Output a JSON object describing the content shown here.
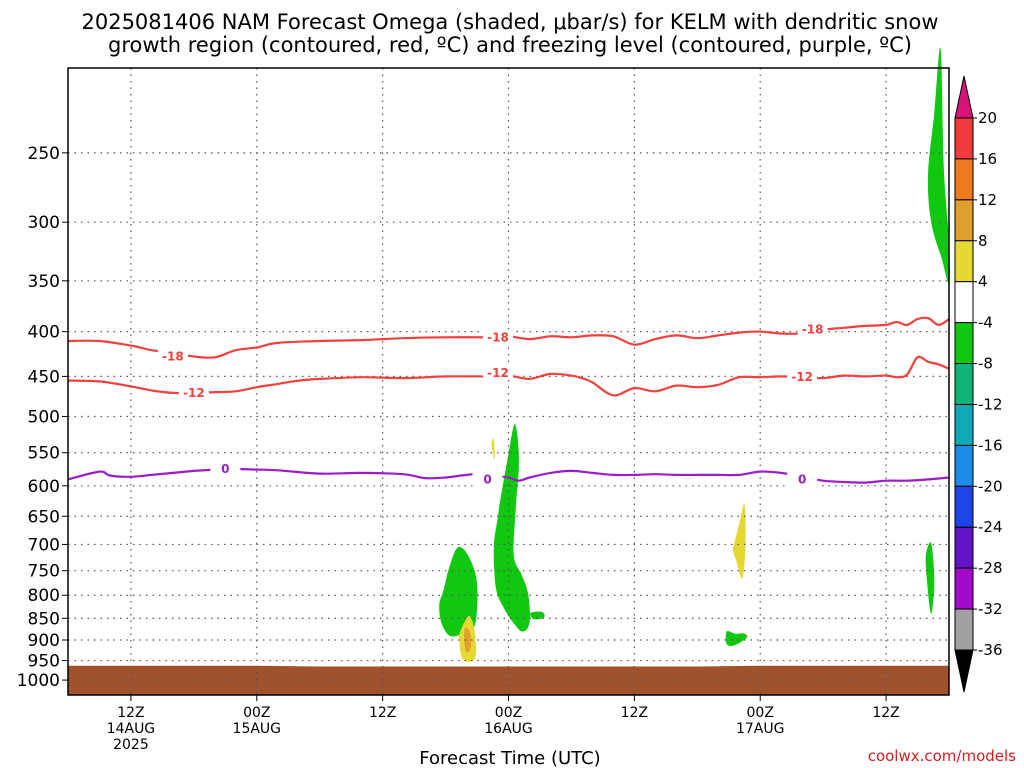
{
  "chart_data": {
    "type": "heatmap",
    "title_lines": [
      "2025081406 NAM Forecast Omega (shaded, μbar/s) for KELM with dendritic snow",
      "growth region (contoured, red, ºC) and freezing level (contoured, purple, ºC)"
    ],
    "xlabel": "Forecast Time (UTC)",
    "credit": "coolwx.com/models",
    "y_axis": {
      "scale": "log-pressure",
      "unit": "hPa",
      "range": [
        200,
        1040
      ],
      "ticks": [
        "250",
        "300",
        "350",
        "400",
        "450",
        "500",
        "550",
        "600",
        "650",
        "700",
        "750",
        "800",
        "850",
        "900",
        "950",
        "1000"
      ]
    },
    "x_axis": {
      "range": [
        0,
        84
      ],
      "ticks": [
        {
          "hour": 6,
          "line1": "12Z",
          "line2": "14AUG",
          "line3": "2025"
        },
        {
          "hour": 18,
          "line1": "00Z",
          "line2": "15AUG",
          "line3": ""
        },
        {
          "hour": 30,
          "line1": "12Z",
          "line2": "",
          "line3": ""
        },
        {
          "hour": 42,
          "line1": "00Z",
          "line2": "16AUG",
          "line3": ""
        },
        {
          "hour": 54,
          "line1": "12Z",
          "line2": "",
          "line3": ""
        },
        {
          "hour": 66,
          "line1": "00Z",
          "line2": "17AUG",
          "line3": ""
        },
        {
          "hour": 78,
          "line1": "12Z",
          "line2": "",
          "line3": ""
        }
      ]
    },
    "grid": true,
    "colorbar": {
      "labels": [
        "20",
        "16",
        "12",
        "8",
        "4",
        "-4",
        "-8",
        "-12",
        "-16",
        "-20",
        "-24",
        "-28",
        "-32",
        "-36"
      ],
      "colors": [
        "#d8127a",
        "#f03c3c",
        "#f07a1e",
        "#e0a02e",
        "#e6d832",
        "#ffffff",
        "#10c810",
        "#10b478",
        "#10aab4",
        "#1e8ce6",
        "#1e46e6",
        "#6414c8",
        "#a00ac8",
        "#a0a0a0",
        "#000000"
      ],
      "extend": "both"
    },
    "terrain": {
      "color": "#a0522d",
      "surface_hpa": [
        963,
        963,
        963,
        963,
        965,
        965,
        965,
        965,
        965,
        965,
        965,
        963,
        963,
        963,
        963
      ]
    },
    "dgz_color": "#f04040",
    "freezing_color": "#9a1ec8",
    "isotherms": [
      {
        "label": "-18",
        "color": "#f04040",
        "x": [
          0,
          3,
          6,
          8,
          10,
          12,
          14,
          16,
          18,
          20,
          24,
          28,
          32,
          36,
          40,
          42,
          44,
          46,
          48,
          50,
          52,
          54,
          56,
          58,
          60,
          62,
          64,
          66,
          68,
          70,
          72,
          74,
          76,
          78,
          79,
          80,
          81,
          82,
          83,
          84
        ],
        "y": [
          410,
          410,
          415,
          420,
          423,
          427,
          428,
          420,
          417,
          412,
          410,
          409,
          407,
          406,
          406,
          405,
          408,
          405,
          406,
          404,
          405,
          414,
          408,
          404,
          407,
          404,
          401,
          400,
          402,
          402,
          398,
          396,
          394,
          393,
          390,
          393,
          387,
          386,
          393,
          387
        ],
        "label_at": [
          [
            10,
            427
          ],
          [
            41,
            406
          ],
          [
            71,
            398
          ]
        ]
      },
      {
        "label": "-12",
        "color": "#f04040",
        "x": [
          0,
          3,
          6,
          8,
          10,
          12,
          14,
          16,
          18,
          20,
          22,
          24,
          28,
          32,
          36,
          40,
          42,
          44,
          46,
          48,
          49,
          50,
          52,
          54,
          56,
          58,
          60,
          62,
          64,
          66,
          68,
          70,
          72,
          74,
          76,
          78,
          79,
          80,
          81,
          82,
          83,
          84
        ],
        "y": [
          455,
          456,
          462,
          467,
          470,
          470,
          469,
          468,
          463,
          459,
          455,
          453,
          451,
          452,
          450,
          450,
          449,
          453,
          447,
          449,
          452,
          457,
          473,
          464,
          468,
          461,
          463,
          460,
          451,
          451,
          450,
          451,
          452,
          449,
          450,
          449,
          451,
          448,
          428,
          433,
          436,
          441
        ],
        "label_at": [
          [
            12,
            470
          ],
          [
            41,
            446
          ],
          [
            70,
            451
          ]
        ]
      },
      {
        "label": "0",
        "color": "#9a1ec8",
        "x": [
          0,
          3,
          4,
          6,
          8,
          10,
          12,
          14,
          16,
          18,
          20,
          24,
          28,
          32,
          34,
          36,
          38,
          40,
          41,
          42,
          43,
          44,
          46,
          48,
          50,
          52,
          54,
          56,
          58,
          60,
          62,
          64,
          66,
          68,
          70,
          72,
          74,
          76,
          78,
          80,
          82,
          84
        ],
        "y": [
          590,
          578,
          584,
          586,
          583,
          580,
          577,
          575,
          574,
          575,
          576,
          581,
          580,
          582,
          588,
          587,
          583,
          580,
          585,
          587,
          592,
          587,
          580,
          577,
          580,
          583,
          583,
          582,
          583,
          583,
          583,
          583,
          578,
          580,
          586,
          592,
          594,
          595,
          592,
          592,
          590,
          587
        ],
        "label_at": [
          [
            15,
            574
          ],
          [
            40,
            590
          ],
          [
            70,
            590
          ]
        ]
      }
    ],
    "omega_regions": [
      {
        "value": "-4 to -8",
        "color": "#10c810",
        "x": [
          35.8,
          36.4,
          37.2,
          38.2,
          39.0,
          38.8,
          37.6,
          36.4,
          35.6,
          35.4
        ],
        "y": [
          790,
          740,
          705,
          722,
          775,
          865,
          885,
          890,
          860,
          820
        ]
      },
      {
        "value": "-4 to -8",
        "color": "#10c810",
        "x": [
          41.2,
          41.9,
          42.6,
          43.0,
          42.7,
          42.5,
          43.3,
          43.9,
          44.0,
          43.3,
          42.3,
          41.5,
          40.8,
          40.6,
          41.0
        ],
        "y": [
          625,
          560,
          510,
          560,
          635,
          720,
          760,
          800,
          860,
          880,
          855,
          825,
          785,
          705,
          650
        ]
      },
      {
        "value": "-4 to -8",
        "color": "#10c810",
        "x": [
          44.1,
          45.2,
          45.4,
          44.4
        ],
        "y": [
          838,
          836,
          848,
          852
        ]
      },
      {
        "value": "-4 to -8",
        "color": "#10c810",
        "x": [
          62.8,
          63.6,
          64.5,
          64.7,
          63.6,
          62.8
        ],
        "y": [
          880,
          885,
          885,
          895,
          912,
          910
        ]
      },
      {
        "value": "-4 to -8",
        "color": "#10c810",
        "x": [
          81.8,
          82.3,
          82.6,
          82.3,
          81.9
        ],
        "y": [
          720,
          698,
          770,
          840,
          770
        ]
      },
      {
        "value": "-4 to -8",
        "color": "#10c810",
        "x": [
          82.0,
          82.6,
          83.2,
          83.5,
          84.0,
          84.0,
          83.3,
          82.3
        ],
        "y": [
          265,
          225,
          190,
          260,
          315,
          352,
          330,
          300
        ]
      },
      {
        "value": "4 to 8",
        "color": "#e6d832",
        "x": [
          37.4,
          38.2,
          38.7,
          38.9,
          38.5,
          37.6,
          37.3
        ],
        "y": [
          880,
          845,
          870,
          930,
          952,
          945,
          900
        ]
      },
      {
        "value": "4 to 8",
        "color": "#e6d832",
        "x": [
          40.4,
          40.7,
          40.6
        ],
        "y": [
          540,
          560,
          530
        ]
      },
      {
        "value": "4 to 8",
        "color": "#e6d832",
        "x": [
          63.5,
          64.0,
          64.5,
          64.6,
          64.3,
          63.7,
          63.4
        ],
        "y": [
          700,
          663,
          630,
          700,
          765,
          730,
          710
        ]
      },
      {
        "value": "8 to 12",
        "color": "#e0a02e",
        "x": [
          37.8,
          38.3,
          38.4,
          37.9
        ],
        "y": [
          875,
          880,
          920,
          925
        ]
      }
    ]
  }
}
